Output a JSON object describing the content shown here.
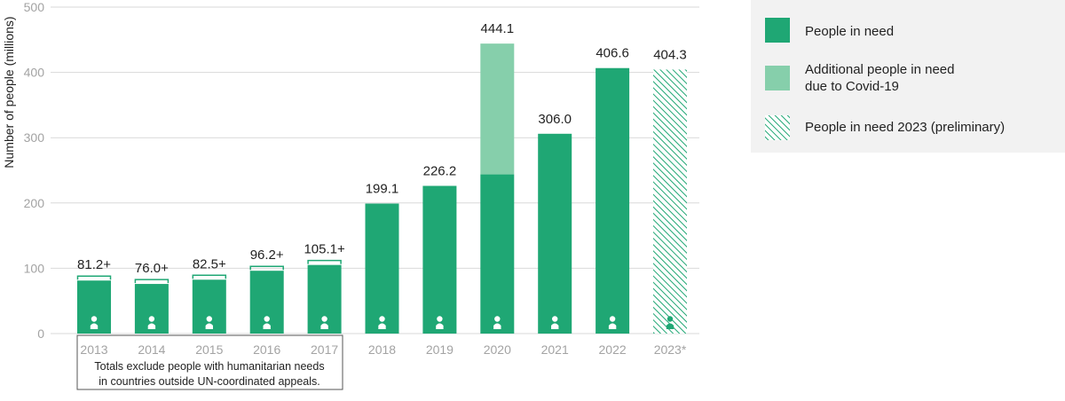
{
  "chart_data": {
    "type": "bar",
    "ylabel": "Number of people (millions)",
    "ylim": [
      0,
      500
    ],
    "yticks": [
      0,
      100,
      200,
      300,
      400,
      500
    ],
    "grid": true,
    "legend_position": "right",
    "categories": [
      "2013",
      "2014",
      "2015",
      "2016",
      "2017",
      "2018",
      "2019",
      "2020",
      "2021",
      "2022",
      "2023*"
    ],
    "series": [
      {
        "name": "People in need",
        "values": [
          81.2,
          76.0,
          82.5,
          96.2,
          105.1,
          199.1,
          226.2,
          243.8,
          306.0,
          406.6,
          null
        ]
      },
      {
        "name": "Additional people in need due to Covid-19",
        "values": [
          null,
          null,
          null,
          null,
          null,
          null,
          null,
          200.3,
          null,
          null,
          null
        ]
      },
      {
        "name": "People in need 2023 (preliminary)",
        "values": [
          null,
          null,
          null,
          null,
          null,
          null,
          null,
          null,
          null,
          null,
          404.3
        ]
      }
    ],
    "totals": [
      81.2,
      76.0,
      82.5,
      96.2,
      105.1,
      199.1,
      226.2,
      444.1,
      306.0,
      406.6,
      404.3
    ],
    "data_labels": [
      "81.2+",
      "76.0+",
      "82.5+",
      "96.2+",
      "105.1+",
      "199.1",
      "226.2",
      "444.1",
      "306.0",
      "406.6",
      "404.3"
    ],
    "bracketed": [
      true,
      true,
      true,
      true,
      true,
      false,
      false,
      false,
      false,
      false,
      false
    ],
    "legend": [
      {
        "lines": [
          "People in need"
        ],
        "style": "solid"
      },
      {
        "lines": [
          "Additional people in need",
          "due to Covid-19"
        ],
        "style": "light"
      },
      {
        "lines": [
          "People in need 2023 (preliminary)"
        ],
        "style": "hatched"
      }
    ],
    "note": [
      "Totals exclude people with humanitarian needs",
      "in countries outside UN-coordinated appeals."
    ],
    "colors": {
      "primary": "#1fa774",
      "covid": "#86cfab",
      "grid": "#d9d9d9",
      "tick": "#a3a3a3",
      "legend_bg": "#f2f2f2",
      "icon": "#ffffff"
    },
    "icon": "person-icon"
  }
}
